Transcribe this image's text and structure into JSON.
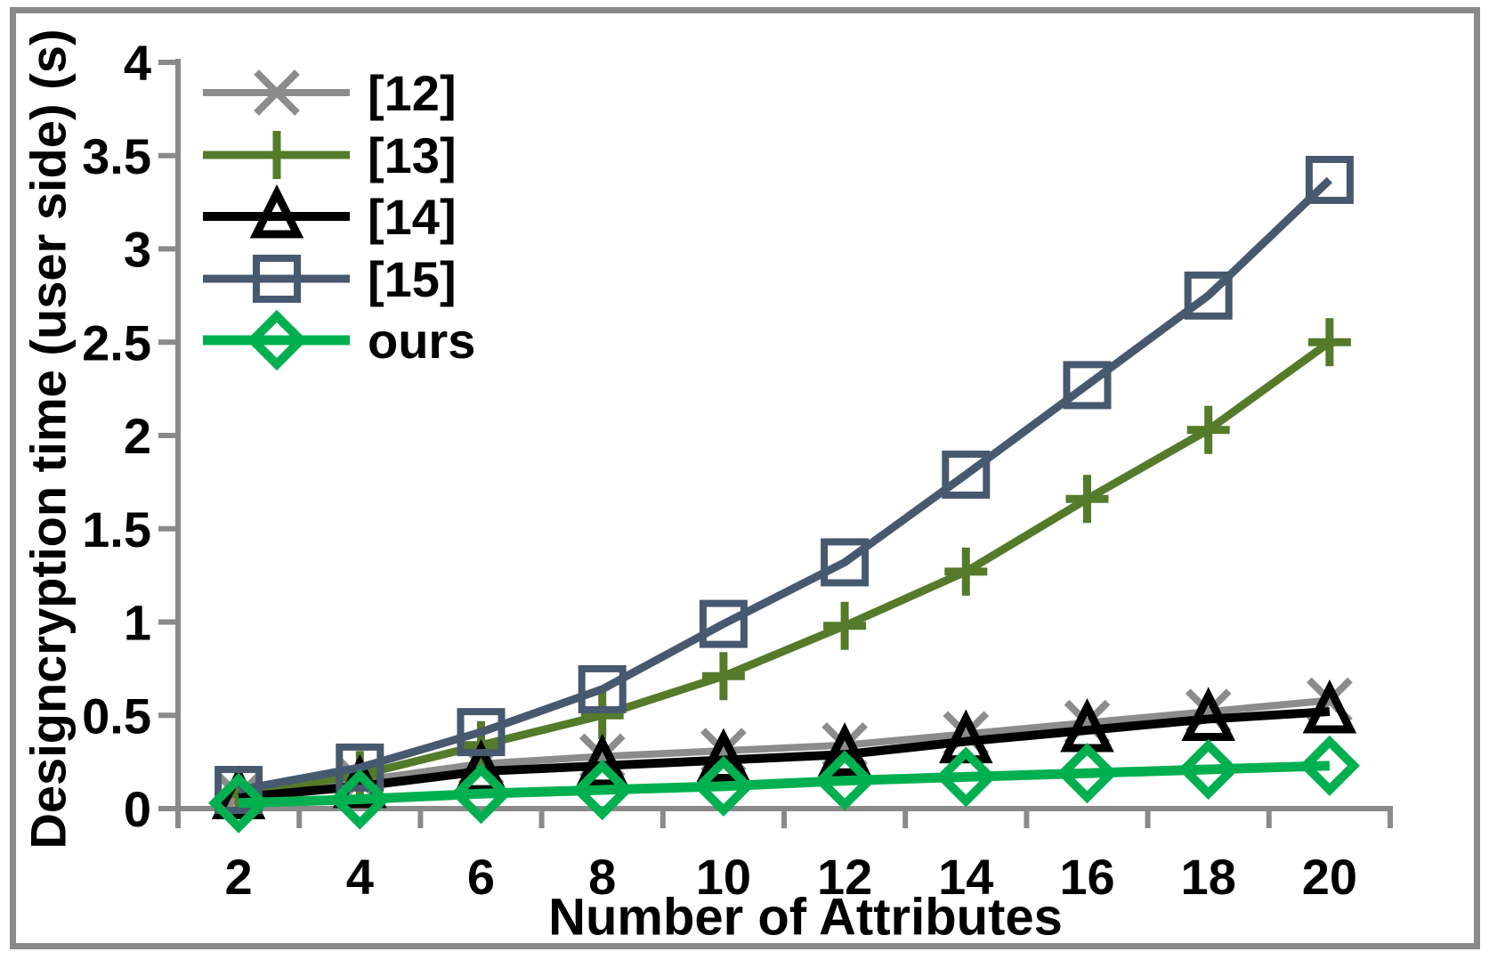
{
  "figure": {
    "background": "#ffffff",
    "border_color": "#8a8a8a",
    "axis_color": "#8a8a8a",
    "text_color": "#000000"
  },
  "chart_data": {
    "type": "line",
    "title": "",
    "xlabel": "Number of Attributes",
    "ylabel": "Designcryption time (user side) (s)",
    "categories": [
      2,
      4,
      6,
      8,
      10,
      12,
      14,
      16,
      18,
      20
    ],
    "x_tick_labels": [
      "2",
      "4",
      "6",
      "8",
      "10",
      "12",
      "14",
      "16",
      "18",
      "20"
    ],
    "y_ticks": [
      0,
      0.5,
      1,
      1.5,
      2,
      2.5,
      3,
      3.5,
      4
    ],
    "y_tick_labels": [
      "0",
      "0.5",
      "1",
      "1.5",
      "2",
      "2.5",
      "3",
      "3.5",
      "4"
    ],
    "ylim": [
      0,
      4
    ],
    "grid": false,
    "legend_position": "top-left-inside",
    "series": [
      {
        "name": "[12]",
        "marker": "x-cross",
        "color": "#8c8c8c",
        "line_width": 8,
        "values": [
          0.07,
          0.15,
          0.24,
          0.28,
          0.31,
          0.34,
          0.4,
          0.46,
          0.52,
          0.58
        ]
      },
      {
        "name": "[13]",
        "marker": "plus",
        "color": "#547a2a",
        "line_width": 9,
        "values": [
          0.08,
          0.18,
          0.34,
          0.5,
          0.71,
          0.98,
          1.27,
          1.66,
          2.03,
          2.5
        ]
      },
      {
        "name": "[14]",
        "marker": "triangle-up",
        "color": "#000000",
        "line_width": 10,
        "values": [
          0.06,
          0.12,
          0.2,
          0.23,
          0.26,
          0.29,
          0.36,
          0.42,
          0.48,
          0.52
        ]
      },
      {
        "name": "[15]",
        "marker": "square",
        "color": "#47596f",
        "line_width": 9,
        "values": [
          0.1,
          0.22,
          0.41,
          0.64,
          0.99,
          1.32,
          1.79,
          2.27,
          2.75,
          3.37
        ]
      },
      {
        "name": "ours",
        "marker": "diamond",
        "color": "#00b050",
        "line_width": 11,
        "values": [
          0.03,
          0.05,
          0.08,
          0.1,
          0.12,
          0.15,
          0.17,
          0.19,
          0.21,
          0.23
        ]
      }
    ]
  }
}
